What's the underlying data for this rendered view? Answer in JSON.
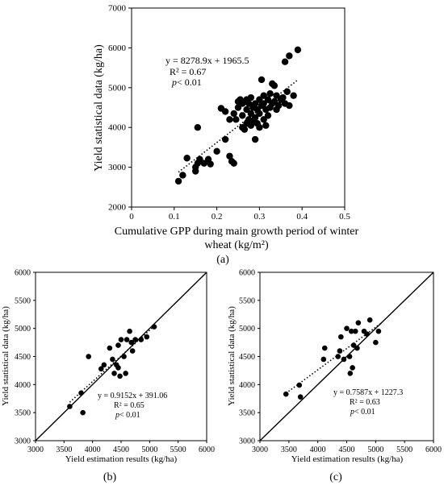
{
  "chart_data": [
    {
      "type": "scatter",
      "panel_label": "(a)",
      "xlabel_line1": "Cumulative GPP during main growth period of winter",
      "xlabel_line2": "wheat (kg/m²)",
      "ylabel": "Yield statistical data (kg/ha)",
      "xlim": [
        0,
        0.5
      ],
      "ylim": [
        2000,
        7000
      ],
      "x_ticks": [
        "0",
        "0.1",
        "0.2",
        "0.3",
        "0.4",
        "0.5"
      ],
      "y_ticks": [
        "2000",
        "3000",
        "4000",
        "5000",
        "6000",
        "7000"
      ],
      "grid": false,
      "trendline": {
        "style": "dotted",
        "slope": 8278.9,
        "intercept": 1965.5,
        "x_range": [
          0.11,
          0.39
        ]
      },
      "annotations": {
        "equation": "y = 8278.9x + 1965.5",
        "r2": "R² = 0.67",
        "p_italic": "p",
        "p_rest": "< 0.01"
      },
      "points": [
        [
          0.11,
          2650
        ],
        [
          0.12,
          2800
        ],
        [
          0.13,
          3230
        ],
        [
          0.15,
          2900
        ],
        [
          0.15,
          3000
        ],
        [
          0.155,
          3100
        ],
        [
          0.16,
          3200
        ],
        [
          0.155,
          4000
        ],
        [
          0.17,
          3100
        ],
        [
          0.18,
          3200
        ],
        [
          0.185,
          3080
        ],
        [
          0.2,
          3400
        ],
        [
          0.21,
          4480
        ],
        [
          0.22,
          4400
        ],
        [
          0.22,
          3700
        ],
        [
          0.23,
          3280
        ],
        [
          0.235,
          3150
        ],
        [
          0.24,
          3100
        ],
        [
          0.23,
          4200
        ],
        [
          0.24,
          4350
        ],
        [
          0.245,
          4200
        ],
        [
          0.25,
          4500
        ],
        [
          0.25,
          4650
        ],
        [
          0.255,
          4700
        ],
        [
          0.26,
          4000
        ],
        [
          0.26,
          4300
        ],
        [
          0.26,
          4600
        ],
        [
          0.265,
          3950
        ],
        [
          0.27,
          4100
        ],
        [
          0.27,
          4450
        ],
        [
          0.27,
          4700
        ],
        [
          0.275,
          4200
        ],
        [
          0.275,
          4600
        ],
        [
          0.28,
          4050
        ],
        [
          0.28,
          4350
        ],
        [
          0.28,
          4750
        ],
        [
          0.285,
          4150
        ],
        [
          0.285,
          4500
        ],
        [
          0.29,
          3700
        ],
        [
          0.29,
          4250
        ],
        [
          0.29,
          4600
        ],
        [
          0.295,
          4100
        ],
        [
          0.295,
          4450
        ],
        [
          0.3,
          4000
        ],
        [
          0.3,
          4350
        ],
        [
          0.3,
          4700
        ],
        [
          0.305,
          4550
        ],
        [
          0.305,
          5200
        ],
        [
          0.31,
          4200
        ],
        [
          0.31,
          4600
        ],
        [
          0.31,
          4800
        ],
        [
          0.315,
          4050
        ],
        [
          0.315,
          4450
        ],
        [
          0.32,
          4300
        ],
        [
          0.32,
          4700
        ],
        [
          0.325,
          4500
        ],
        [
          0.325,
          4850
        ],
        [
          0.33,
          4600
        ],
        [
          0.33,
          5100
        ],
        [
          0.335,
          5050
        ],
        [
          0.335,
          4650
        ],
        [
          0.34,
          4450
        ],
        [
          0.34,
          4800
        ],
        [
          0.345,
          4550
        ],
        [
          0.35,
          4700
        ],
        [
          0.355,
          4750
        ],
        [
          0.36,
          4600
        ],
        [
          0.36,
          5650
        ],
        [
          0.365,
          4900
        ],
        [
          0.37,
          4550
        ],
        [
          0.37,
          5800
        ],
        [
          0.38,
          4800
        ],
        [
          0.39,
          5950
        ]
      ]
    },
    {
      "type": "scatter",
      "panel_label": "(b)",
      "xlabel": "Yield estimation results (kg/ha)",
      "ylabel": "Yield statistical data (kg/ha)",
      "xlim": [
        3000,
        6000
      ],
      "ylim": [
        3000,
        6000
      ],
      "x_ticks": [
        "3000",
        "3500",
        "4000",
        "4500",
        "5000",
        "5500",
        "6000"
      ],
      "y_ticks": [
        "3000",
        "3500",
        "4000",
        "4500",
        "5000",
        "5500",
        "6000"
      ],
      "grid": false,
      "one_to_one_line": true,
      "trendline": {
        "style": "dotted",
        "slope": 0.9152,
        "intercept": 391.06,
        "x_range": [
          3600,
          5100
        ]
      },
      "annotations": {
        "equation": "y = 0.9152x + 391.06",
        "r2": "R² = 0.65",
        "p_italic": "p",
        "p_rest": "< 0.01"
      },
      "points": [
        [
          3600,
          3610
        ],
        [
          3800,
          3850
        ],
        [
          3830,
          3500
        ],
        [
          3930,
          4500
        ],
        [
          4150,
          4280
        ],
        [
          4200,
          4350
        ],
        [
          4300,
          4650
        ],
        [
          4350,
          4450
        ],
        [
          4380,
          4200
        ],
        [
          4420,
          4350
        ],
        [
          4450,
          4300
        ],
        [
          4450,
          4700
        ],
        [
          4480,
          4150
        ],
        [
          4500,
          4800
        ],
        [
          4550,
          4500
        ],
        [
          4580,
          4200
        ],
        [
          4600,
          4800
        ],
        [
          4650,
          4950
        ],
        [
          4680,
          4750
        ],
        [
          4700,
          4600
        ],
        [
          4750,
          4800
        ],
        [
          4850,
          4800
        ],
        [
          4950,
          4850
        ],
        [
          5080,
          5030
        ]
      ]
    },
    {
      "type": "scatter",
      "panel_label": "(c)",
      "xlabel": "Yield estimation results (kg/ha)",
      "ylabel": "Yield statistical data (kg/ha)",
      "xlim": [
        3000,
        6000
      ],
      "ylim": [
        3000,
        6000
      ],
      "x_ticks": [
        "3000",
        "3500",
        "4000",
        "4500",
        "5000",
        "5500",
        "6000"
      ],
      "y_ticks": [
        "3000",
        "3500",
        "4000",
        "4500",
        "5000",
        "5500",
        "6000"
      ],
      "grid": false,
      "one_to_one_line": true,
      "trendline": {
        "style": "dotted",
        "slope": 0.7587,
        "intercept": 1227.3,
        "x_range": [
          3450,
          5100
        ]
      },
      "annotations": {
        "equation": "y = 0.7587x + 1227.3",
        "r2": "R² = 0.63",
        "p_italic": "p",
        "p_rest": "< 0.01"
      },
      "points": [
        [
          3450,
          3830
        ],
        [
          3680,
          3990
        ],
        [
          3700,
          3780
        ],
        [
          4100,
          4450
        ],
        [
          4120,
          4650
        ],
        [
          4350,
          4500
        ],
        [
          4380,
          4600
        ],
        [
          4400,
          4850
        ],
        [
          4450,
          4450
        ],
        [
          4500,
          5000
        ],
        [
          4550,
          4500
        ],
        [
          4560,
          4200
        ],
        [
          4580,
          4950
        ],
        [
          4600,
          4300
        ],
        [
          4620,
          4700
        ],
        [
          4650,
          4950
        ],
        [
          4680,
          4650
        ],
        [
          4700,
          5100
        ],
        [
          4800,
          4950
        ],
        [
          4850,
          4900
        ],
        [
          4900,
          5150
        ],
        [
          5000,
          4750
        ],
        [
          5050,
          4950
        ]
      ]
    }
  ]
}
